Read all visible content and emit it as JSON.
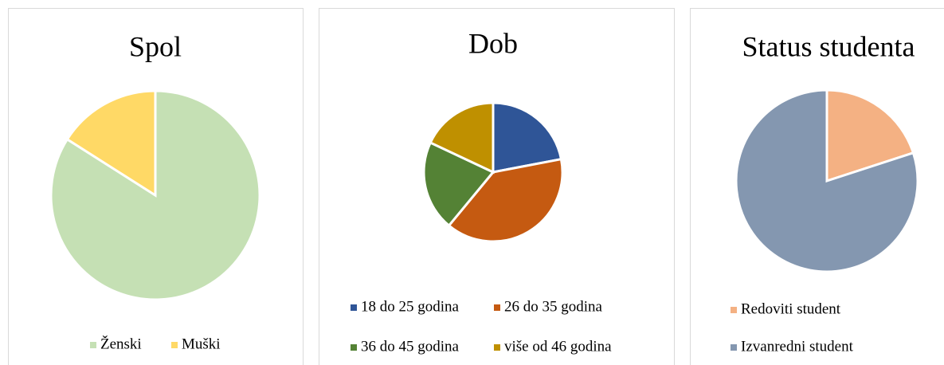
{
  "chart_data": [
    {
      "type": "pie",
      "title": "Spol",
      "categories": [
        "Ženski",
        "Muški"
      ],
      "values": [
        84,
        16
      ],
      "colors": [
        "#c5e0b4",
        "#ffd966"
      ],
      "legend": "bottom"
    },
    {
      "type": "pie",
      "title": "Dob",
      "categories": [
        "18 do 25 godina",
        "26 do 35 godina",
        "36 do 45 godina",
        "više od 46 godina"
      ],
      "values": [
        22,
        39,
        21,
        18
      ],
      "colors": [
        "#2f5597",
        "#c55a11",
        "#548235",
        "#bf9000"
      ],
      "legend": "bottom"
    },
    {
      "type": "pie",
      "title": "Status studenta",
      "categories": [
        "Redoviti student",
        "Izvanredni student"
      ],
      "values": [
        20,
        80
      ],
      "colors": [
        "#f4b183",
        "#8497b0"
      ],
      "legend": "bottom"
    }
  ]
}
